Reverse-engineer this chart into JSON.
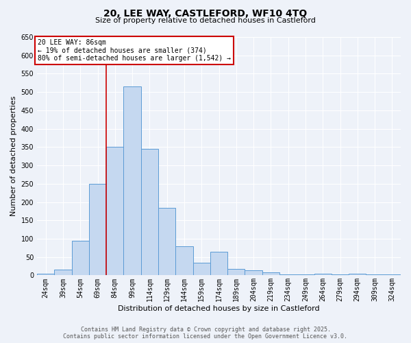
{
  "title": "20, LEE WAY, CASTLEFORD, WF10 4TQ",
  "subtitle": "Size of property relative to detached houses in Castleford",
  "xlabel": "Distribution of detached houses by size in Castleford",
  "ylabel": "Number of detached properties",
  "footer_line1": "Contains HM Land Registry data © Crown copyright and database right 2025.",
  "footer_line2": "Contains public sector information licensed under the Open Government Licence v3.0.",
  "bin_labels": [
    "24sqm",
    "39sqm",
    "54sqm",
    "69sqm",
    "84sqm",
    "99sqm",
    "114sqm",
    "129sqm",
    "144sqm",
    "159sqm",
    "174sqm",
    "189sqm",
    "204sqm",
    "219sqm",
    "234sqm",
    "249sqm",
    "264sqm",
    "279sqm",
    "294sqm",
    "309sqm",
    "324sqm"
  ],
  "bin_lefts": [
    24,
    39,
    54,
    69,
    84,
    99,
    114,
    129,
    144,
    159,
    174,
    189,
    204,
    219,
    234,
    249,
    264,
    279,
    294,
    309,
    324
  ],
  "bin_width": 15,
  "bar_heights": [
    5,
    15,
    95,
    250,
    350,
    515,
    345,
    185,
    80,
    35,
    65,
    18,
    13,
    8,
    2,
    3,
    5,
    2,
    5,
    3,
    3
  ],
  "bar_color": "#c5d8f0",
  "bar_edge_color": "#5b9bd5",
  "vline_x": 84,
  "vline_color": "#cc0000",
  "annotation_line1": "20 LEE WAY: 86sqm",
  "annotation_line2": "← 19% of detached houses are smaller (374)",
  "annotation_line3": "80% of semi-detached houses are larger (1,542) →",
  "annotation_box_facecolor": "#ffffff",
  "annotation_box_edgecolor": "#cc0000",
  "ylim": [
    0,
    650
  ],
  "yticks": [
    0,
    50,
    100,
    150,
    200,
    250,
    300,
    350,
    400,
    450,
    500,
    550,
    600,
    650
  ],
  "background_color": "#eef2f9",
  "title_fontsize": 10,
  "subtitle_fontsize": 8,
  "axis_label_fontsize": 8,
  "tick_fontsize": 7,
  "footer_fontsize": 6
}
